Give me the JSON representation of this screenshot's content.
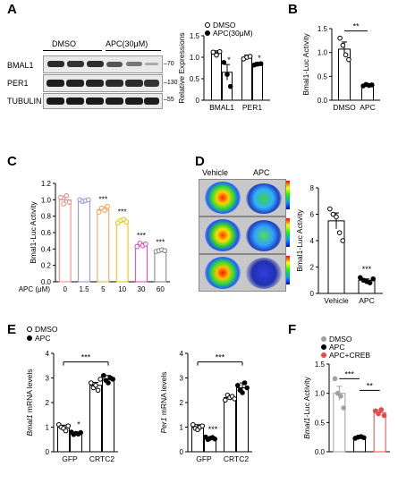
{
  "panels": {
    "A": {
      "letter": "A"
    },
    "B": {
      "letter": "B"
    },
    "C": {
      "letter": "C"
    },
    "D": {
      "letter": "D"
    },
    "E": {
      "letter": "E"
    },
    "F": {
      "letter": "F"
    }
  },
  "western_blot": {
    "lane_labels": [
      "DMSO",
      "APC(30μM)"
    ],
    "rows": [
      {
        "label": "BMAL1",
        "marker": "–70"
      },
      {
        "label": "PER1",
        "marker": "–130"
      },
      {
        "label": "TUBULIN",
        "marker": "–55"
      }
    ]
  },
  "imaging": {
    "labels": [
      "Vehicle",
      "APC"
    ]
  },
  "chart_data": [
    {
      "id": "A",
      "type": "bar",
      "ylabel": "Relative Expressions",
      "ylim": [
        0,
        1.5
      ],
      "yticks": [
        "0",
        "0.5",
        "1.0",
        "1.5"
      ],
      "categories": [
        "BMAL1",
        "PER1"
      ],
      "legend": [
        "DMSO",
        "APC(30μM)"
      ],
      "series": [
        {
          "name": "DMSO",
          "values": [
            1.1,
            1.0
          ],
          "errors": [
            0.05,
            0.05
          ],
          "points": [
            [
              1.12,
              1.05,
              1.13
            ],
            [
              0.96,
              1.0,
              1.02
            ]
          ]
        },
        {
          "name": "APC(30μM)",
          "values": [
            0.65,
            0.85
          ],
          "errors": [
            0.18,
            0.03
          ],
          "points": [
            [
              0.88,
              0.6,
              0.32
            ],
            [
              0.82,
              0.84,
              0.85
            ]
          ]
        }
      ],
      "annotations": [
        "*",
        "*"
      ]
    },
    {
      "id": "B",
      "type": "bar",
      "ylabel": "Bmal1-Luc Activity",
      "ylim": [
        0,
        1.5
      ],
      "yticks": [
        "0.0",
        "0.5",
        "1.0",
        "1.5"
      ],
      "categories": [
        "DMSO",
        "APC"
      ],
      "values": [
        1.07,
        0.32
      ],
      "errors": [
        0.15,
        0.02
      ],
      "points": [
        [
          1.3,
          1.15,
          0.95,
          0.85
        ],
        [
          0.3,
          0.33,
          0.31,
          0.32
        ]
      ],
      "annotations": [
        "**"
      ]
    },
    {
      "id": "C",
      "type": "bar",
      "ylabel": "Bmal1-Luc Activity",
      "ylim": [
        0,
        1.2
      ],
      "yticks": [
        "0.0",
        "0.2",
        "0.4",
        "0.6",
        "0.8",
        "1.0",
        "1.2"
      ],
      "xlabel": "APC (μM)",
      "categories": [
        "0",
        "1.5",
        "5",
        "10",
        "30",
        "60"
      ],
      "values": [
        1.0,
        0.99,
        0.88,
        0.74,
        0.45,
        0.38
      ],
      "errors": [
        0.04,
        0.01,
        0.03,
        0.02,
        0.02,
        0.01
      ],
      "points": [
        [
          1.03,
          0.95,
          1.05,
          0.97
        ],
        [
          1.0,
          0.98,
          0.99,
          1.0
        ],
        [
          0.85,
          0.9,
          0.87,
          0.92
        ],
        [
          0.72,
          0.75,
          0.76,
          0.73
        ],
        [
          0.43,
          0.47,
          0.44,
          0.46
        ],
        [
          0.37,
          0.38,
          0.39,
          0.38
        ]
      ],
      "colors": [
        "#f08080",
        "#8c8ce8",
        "#f0a050",
        "#e8c000",
        "#e040c0",
        "#808080"
      ],
      "annotations": [
        "",
        "",
        "***",
        "***",
        "***",
        "***"
      ]
    },
    {
      "id": "D",
      "type": "bar",
      "ylabel": "Bmal1-Luc Activity",
      "ylim": [
        0,
        8
      ],
      "yticks": [
        "0",
        "2",
        "4",
        "6",
        "8"
      ],
      "categories": [
        "Vehicle",
        "APC"
      ],
      "values": [
        5.5,
        1.0
      ],
      "errors": [
        0.6,
        0.1
      ],
      "points": [
        [
          6.4,
          6.0,
          5.8,
          4.6,
          4.0
        ],
        [
          1.2,
          1.0,
          0.9,
          0.8,
          1.1
        ]
      ],
      "annotations": [
        "***"
      ]
    },
    {
      "id": "E1",
      "type": "bar",
      "ylabel": "Bmal1 mRNA levels",
      "ylim": [
        0,
        4
      ],
      "yticks": [
        "0",
        "1",
        "2",
        "3",
        "4"
      ],
      "categories": [
        "GFP",
        "CRTC2"
      ],
      "legend": [
        "DMSO",
        "APC"
      ],
      "series": [
        {
          "name": "DMSO",
          "values": [
            1.0,
            2.7
          ],
          "errors": [
            0.08,
            0.12
          ],
          "points": [
            [
              1.1,
              1.0,
              0.95,
              0.85,
              1.05
            ],
            [
              2.8,
              2.6,
              2.7,
              2.5,
              2.95
            ]
          ]
        },
        {
          "name": "APC",
          "values": [
            0.75,
            2.95
          ],
          "errors": [
            0.04,
            0.15
          ],
          "points": [
            [
              0.8,
              0.7,
              0.75,
              0.72,
              0.78
            ],
            [
              3.1,
              2.9,
              2.8,
              3.0,
              2.95
            ]
          ]
        }
      ],
      "annotations": [
        "*",
        "***"
      ]
    },
    {
      "id": "E2",
      "type": "bar",
      "ylabel": "Per1 mRNA levels",
      "ylim": [
        0,
        4
      ],
      "yticks": [
        "0",
        "1",
        "2",
        "3",
        "4"
      ],
      "categories": [
        "GFP",
        "CRTC2"
      ],
      "series": [
        {
          "name": "DMSO",
          "values": [
            1.0,
            2.2
          ],
          "errors": [
            0.1,
            0.08
          ],
          "points": [
            [
              1.1,
              0.95,
              0.9,
              1.0,
              1.05
            ],
            [
              2.1,
              2.3,
              2.2,
              2.25,
              2.15
            ]
          ]
        },
        {
          "name": "APC",
          "values": [
            0.55,
            2.6
          ],
          "errors": [
            0.04,
            0.2
          ],
          "points": [
            [
              0.6,
              0.5,
              0.55,
              0.58,
              0.52
            ],
            [
              2.7,
              2.5,
              2.4,
              2.8,
              2.6
            ]
          ]
        }
      ],
      "annotations": [
        "***",
        "***"
      ]
    },
    {
      "id": "F",
      "type": "bar",
      "ylabel": "Bmal1-Luc Activity",
      "ylim": [
        0,
        1.5
      ],
      "yticks": [
        "0.0",
        "0.5",
        "1.0",
        "1.5"
      ],
      "categories": [
        "DMSO",
        "APC",
        "APC+CREB"
      ],
      "legend": [
        "DMSO",
        "APC",
        "APC+CREB"
      ],
      "values": [
        1.0,
        0.25,
        0.67
      ],
      "errors": [
        0.12,
        0.02,
        0.04
      ],
      "points": [
        [
          1.25,
          1.0,
          0.95,
          0.75
        ],
        [
          0.23,
          0.25,
          0.26,
          0.24
        ],
        [
          0.7,
          0.65,
          0.72,
          0.62
        ]
      ],
      "colors": [
        "#a0a0a0",
        "#000000",
        "#e84848"
      ],
      "annotations": [
        "***",
        "**"
      ]
    }
  ],
  "colors": {
    "ink": "#000000",
    "bar_fill": "#ffffff"
  }
}
